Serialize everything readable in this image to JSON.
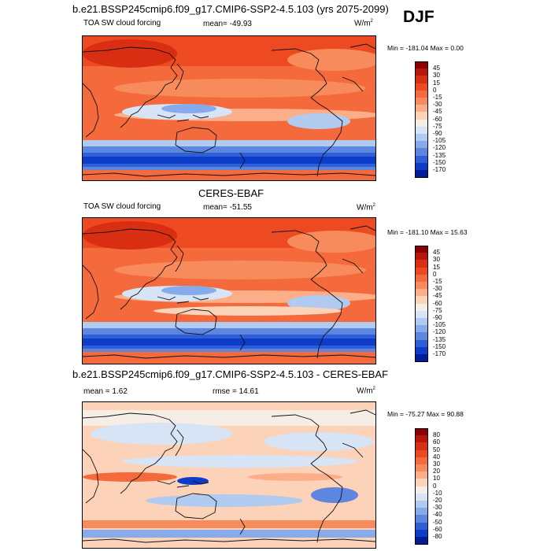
{
  "header": {
    "main_title": "b.e21.BSSP245cmip6.f09_g17.CMIP6-SSP2-4.5.103 (yrs 2075-2099)",
    "season": "DJF"
  },
  "panels": [
    {
      "id": "model",
      "left_label": "TOA SW cloud forcing",
      "mean_label": "mean= -49.93",
      "units": "W/m",
      "units_sup": "2",
      "minmax": "Min = -181.04 Max =   0.00",
      "colorbar": {
        "labels": [
          "45",
          "30",
          "15",
          "0",
          "-15",
          "-30",
          "-45",
          "-60",
          "-75",
          "-90",
          "-105",
          "-120",
          "-135",
          "-150",
          "-170"
        ],
        "colors": [
          "#8b0000",
          "#b8160c",
          "#d92e12",
          "#ee4a22",
          "#f46a3d",
          "#f88b5c",
          "#fbae88",
          "#fcd3b8",
          "#f6eee6",
          "#d6e4f5",
          "#b1cbf0",
          "#87aaea",
          "#5c86e0",
          "#2f5fd6",
          "#0c3cc8",
          "#001c98"
        ]
      }
    },
    {
      "id": "obs",
      "top_title": "CERES-EBAF",
      "left_label": "TOA SW cloud forcing",
      "mean_label": "mean= -51.55",
      "units": "W/m",
      "units_sup": "2",
      "minmax": "Min = -181.10 Max =  15.63",
      "colorbar": {
        "labels": [
          "45",
          "30",
          "15",
          "0",
          "-15",
          "-30",
          "-45",
          "-60",
          "-75",
          "-90",
          "-105",
          "-120",
          "-135",
          "-150",
          "-170"
        ],
        "colors": [
          "#8b0000",
          "#b8160c",
          "#d92e12",
          "#ee4a22",
          "#f46a3d",
          "#f88b5c",
          "#fbae88",
          "#fcd3b8",
          "#f6eee6",
          "#d6e4f5",
          "#b1cbf0",
          "#87aaea",
          "#5c86e0",
          "#2f5fd6",
          "#0c3cc8",
          "#001c98"
        ]
      }
    },
    {
      "id": "diff",
      "top_title": "b.e21.BSSP245cmip6.f09_g17.CMIP6-SSP2-4.5.103 - CERES-EBAF",
      "mean_label": "mean =   1.62",
      "rmse_label": "rmse =  14.61",
      "units": "W/m",
      "units_sup": "2",
      "minmax": "Min = -75.27 Max =  90.88",
      "colorbar": {
        "labels": [
          "80",
          "60",
          "50",
          "40",
          "30",
          "20",
          "10",
          "0",
          "-10",
          "-20",
          "-30",
          "-40",
          "-50",
          "-60",
          "-80"
        ],
        "colors": [
          "#8b0000",
          "#b8160c",
          "#d92e12",
          "#ee4a22",
          "#f46a3d",
          "#f88b5c",
          "#fbae88",
          "#fcd3b8",
          "#f6eee6",
          "#d6e4f5",
          "#b1cbf0",
          "#87aaea",
          "#5c86e0",
          "#2f5fd6",
          "#0c3cc8",
          "#001c98"
        ]
      }
    }
  ]
}
